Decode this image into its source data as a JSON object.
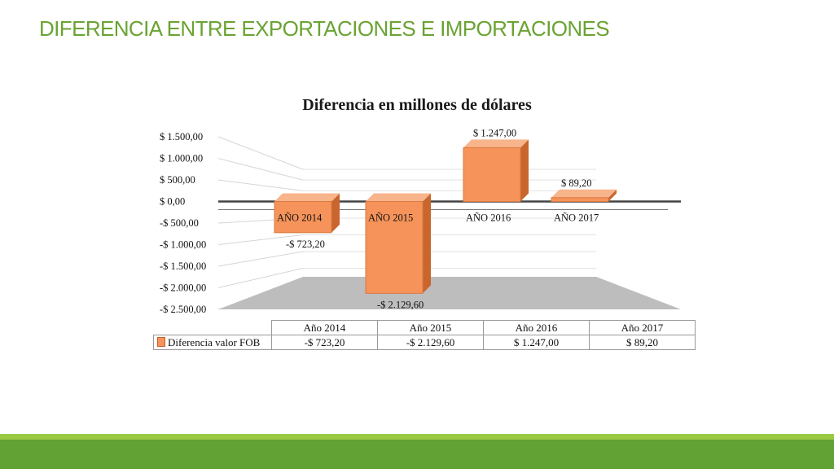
{
  "slide": {
    "title": "DIFERENCIA ENTRE EXPORTACIONES E IMPORTACIONES"
  },
  "colors": {
    "title_green": "#6aa332",
    "footer_green": "#62a133",
    "footer_light_green": "#9bc843",
    "bar_orange": "#f5935a",
    "floor_gray": "#bdbdbd"
  },
  "chart_data": {
    "type": "bar",
    "title": "Diferencia en millones de dólares",
    "categories": [
      "AÑO 2014",
      "AÑO 2015",
      "AÑO 2016",
      "AÑO 2017"
    ],
    "series": [
      {
        "name": "Diferencia valor FOB",
        "values": [
          -723.2,
          -2129.6,
          1247.0,
          89.2
        ],
        "labels": [
          "-$ 723,20",
          "-$ 2.129,60",
          "$ 1.247,00",
          "$ 89,20"
        ]
      }
    ],
    "ylim": [
      -2500,
      1500
    ],
    "y_ticks": [
      1500,
      1000,
      500,
      0,
      -500,
      -1000,
      -1500,
      -2000,
      -2500
    ],
    "y_tick_labels": [
      "$ 1.500,00",
      "$ 1.000,00",
      "$ 500,00",
      "$ 0,00",
      "-$ 500,00",
      "-$ 1.000,00",
      "-$ 1.500,00",
      "-$ 2.000,00",
      "-$ 2.500,00"
    ],
    "grid": true,
    "three_d": true,
    "data_table": {
      "headers": [
        "Año 2014",
        "Año 2015",
        "Año 2016",
        "Año 2017"
      ],
      "row_label": "Diferencia valor FOB",
      "row_values": [
        "-$ 723,20",
        "-$ 2.129,60",
        "$ 1.247,00",
        "$ 89,20"
      ]
    }
  }
}
